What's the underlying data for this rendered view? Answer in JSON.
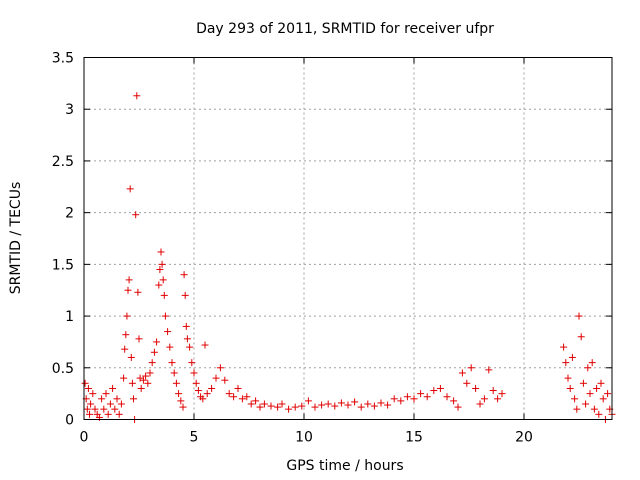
{
  "chart_data": {
    "type": "scatter",
    "title": "Day 293 of 2011, SRMTID for receiver ufpr",
    "xlabel": "GPS time / hours",
    "ylabel": "SRMTID / TECUs",
    "xlim": [
      0,
      24
    ],
    "ylim": [
      0,
      3.5
    ],
    "xticks": [
      0,
      5,
      10,
      15,
      20
    ],
    "xtick_labels": [
      "0",
      "5",
      "10",
      "15",
      "20"
    ],
    "yticks": [
      0,
      0.5,
      1,
      1.5,
      2,
      2.5,
      3,
      3.5
    ],
    "ytick_labels": [
      "0",
      "0.5",
      "1",
      "1.5",
      "2",
      "2.5",
      "3",
      "3.5"
    ],
    "grid": true,
    "marker": "plus",
    "color": "#e00000",
    "series": [
      {
        "name": "SRMTID",
        "points": [
          [
            0.05,
            0.35
          ],
          [
            0.1,
            0.2
          ],
          [
            0.15,
            0.1
          ],
          [
            0.2,
            0.3
          ],
          [
            0.25,
            0.05
          ],
          [
            0.3,
            0.15
          ],
          [
            0.4,
            0.25
          ],
          [
            0.5,
            0.1
          ],
          [
            0.6,
            0.05
          ],
          [
            0.7,
            0.02
          ],
          [
            0.8,
            0.2
          ],
          [
            0.9,
            0.1
          ],
          [
            1.0,
            0.25
          ],
          [
            1.1,
            0.05
          ],
          [
            1.2,
            0.15
          ],
          [
            1.3,
            0.3
          ],
          [
            1.4,
            0.1
          ],
          [
            1.5,
            0.2
          ],
          [
            1.6,
            0.05
          ],
          [
            1.7,
            0.15
          ],
          [
            1.8,
            0.4
          ],
          [
            1.85,
            0.68
          ],
          [
            1.9,
            0.82
          ],
          [
            1.95,
            1.0
          ],
          [
            2.0,
            1.25
          ],
          [
            2.05,
            1.35
          ],
          [
            2.1,
            2.23
          ],
          [
            2.15,
            0.6
          ],
          [
            2.2,
            0.35
          ],
          [
            2.25,
            0.2
          ],
          [
            2.3,
            0.0
          ],
          [
            2.35,
            1.98
          ],
          [
            2.4,
            3.13
          ],
          [
            2.45,
            1.23
          ],
          [
            2.5,
            0.78
          ],
          [
            2.55,
            0.4
          ],
          [
            2.6,
            0.3
          ],
          [
            2.7,
            0.38
          ],
          [
            2.8,
            0.42
          ],
          [
            2.9,
            0.35
          ],
          [
            3.0,
            0.45
          ],
          [
            3.1,
            0.55
          ],
          [
            3.2,
            0.65
          ],
          [
            3.3,
            0.75
          ],
          [
            3.4,
            1.3
          ],
          [
            3.45,
            1.45
          ],
          [
            3.5,
            1.62
          ],
          [
            3.55,
            1.5
          ],
          [
            3.6,
            1.35
          ],
          [
            3.65,
            1.2
          ],
          [
            3.7,
            1.0
          ],
          [
            3.8,
            0.85
          ],
          [
            3.9,
            0.7
          ],
          [
            4.0,
            0.55
          ],
          [
            4.1,
            0.45
          ],
          [
            4.2,
            0.35
          ],
          [
            4.3,
            0.25
          ],
          [
            4.4,
            0.18
          ],
          [
            4.5,
            0.12
          ],
          [
            4.55,
            1.4
          ],
          [
            4.6,
            1.2
          ],
          [
            4.65,
            0.9
          ],
          [
            4.7,
            0.78
          ],
          [
            4.8,
            0.7
          ],
          [
            4.9,
            0.55
          ],
          [
            5.0,
            0.45
          ],
          [
            5.1,
            0.35
          ],
          [
            5.2,
            0.28
          ],
          [
            5.3,
            0.22
          ],
          [
            5.4,
            0.2
          ],
          [
            5.5,
            0.72
          ],
          [
            5.6,
            0.25
          ],
          [
            5.8,
            0.3
          ],
          [
            6.0,
            0.4
          ],
          [
            6.2,
            0.5
          ],
          [
            6.4,
            0.38
          ],
          [
            6.6,
            0.25
          ],
          [
            6.8,
            0.22
          ],
          [
            7.0,
            0.3
          ],
          [
            7.2,
            0.2
          ],
          [
            7.4,
            0.22
          ],
          [
            7.6,
            0.15
          ],
          [
            7.8,
            0.18
          ],
          [
            8.0,
            0.12
          ],
          [
            8.2,
            0.15
          ],
          [
            8.5,
            0.13
          ],
          [
            8.8,
            0.12
          ],
          [
            9.0,
            0.15
          ],
          [
            9.3,
            0.1
          ],
          [
            9.6,
            0.12
          ],
          [
            9.9,
            0.13
          ],
          [
            10.2,
            0.18
          ],
          [
            10.5,
            0.12
          ],
          [
            10.8,
            0.14
          ],
          [
            11.1,
            0.15
          ],
          [
            11.4,
            0.13
          ],
          [
            11.7,
            0.16
          ],
          [
            12.0,
            0.14
          ],
          [
            12.3,
            0.17
          ],
          [
            12.6,
            0.12
          ],
          [
            12.9,
            0.15
          ],
          [
            13.2,
            0.13
          ],
          [
            13.5,
            0.16
          ],
          [
            13.8,
            0.14
          ],
          [
            14.1,
            0.2
          ],
          [
            14.4,
            0.18
          ],
          [
            14.7,
            0.22
          ],
          [
            15.0,
            0.2
          ],
          [
            15.3,
            0.25
          ],
          [
            15.6,
            0.22
          ],
          [
            15.9,
            0.28
          ],
          [
            16.2,
            0.3
          ],
          [
            16.5,
            0.22
          ],
          [
            16.8,
            0.18
          ],
          [
            17.0,
            0.12
          ],
          [
            17.2,
            0.45
          ],
          [
            17.4,
            0.35
          ],
          [
            17.6,
            0.5
          ],
          [
            17.8,
            0.3
          ],
          [
            18.0,
            0.15
          ],
          [
            18.2,
            0.2
          ],
          [
            18.4,
            0.48
          ],
          [
            18.6,
            0.28
          ],
          [
            18.8,
            0.2
          ],
          [
            19.0,
            0.25
          ],
          [
            21.8,
            0.7
          ],
          [
            21.9,
            0.55
          ],
          [
            22.0,
            0.4
          ],
          [
            22.1,
            0.3
          ],
          [
            22.2,
            0.6
          ],
          [
            22.3,
            0.2
          ],
          [
            22.4,
            0.1
          ],
          [
            22.5,
            1.0
          ],
          [
            22.6,
            0.8
          ],
          [
            22.7,
            0.35
          ],
          [
            22.8,
            0.15
          ],
          [
            22.9,
            0.5
          ],
          [
            23.0,
            0.25
          ],
          [
            23.1,
            0.55
          ],
          [
            23.2,
            0.1
          ],
          [
            23.3,
            0.3
          ],
          [
            23.4,
            0.05
          ],
          [
            23.5,
            0.35
          ],
          [
            23.6,
            0.2
          ],
          [
            23.7,
            0.0
          ],
          [
            23.8,
            0.25
          ],
          [
            23.9,
            0.1
          ],
          [
            24.0,
            0.05
          ]
        ]
      }
    ]
  }
}
